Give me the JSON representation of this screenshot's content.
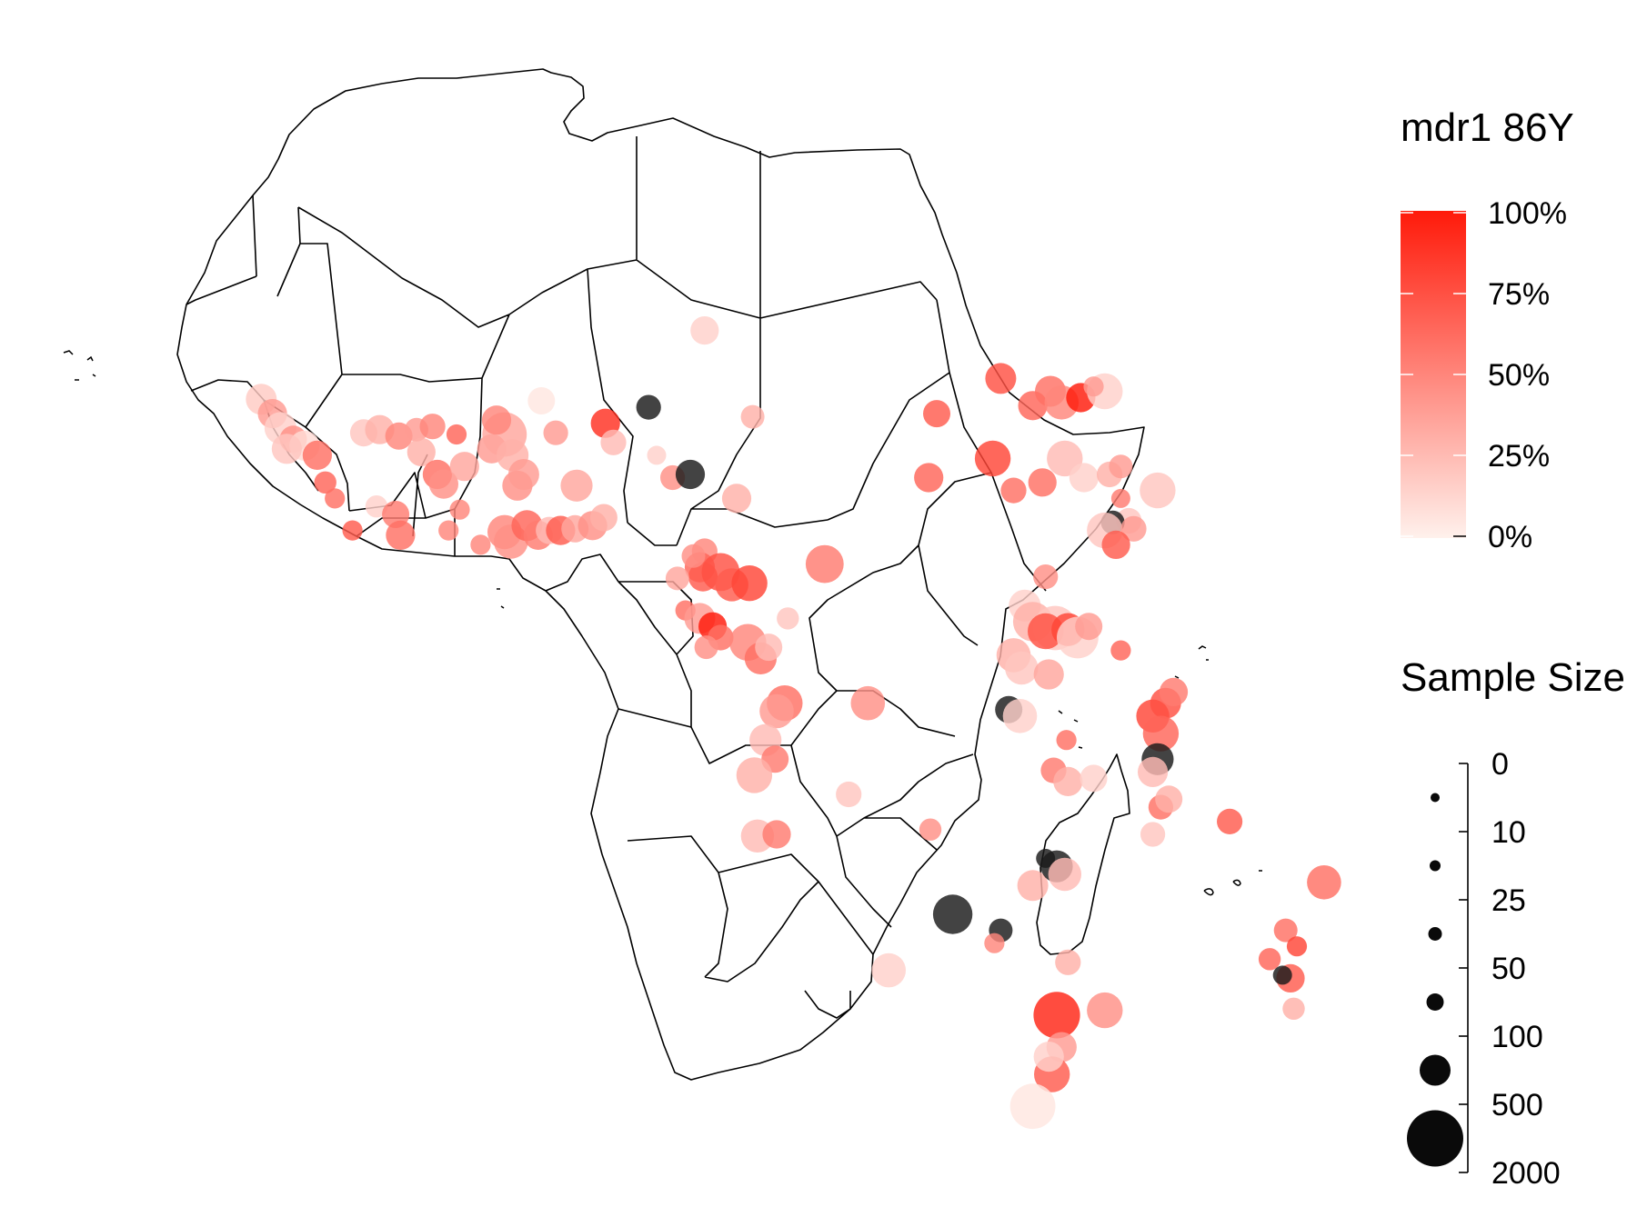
{
  "color_legend": {
    "title": "mdr1 86Y",
    "ticks": [
      "100%",
      "75%",
      "50%",
      "25%",
      "0%"
    ],
    "color_low": "#fff1ec",
    "color_high": "#ff1a0a"
  },
  "size_legend": {
    "title": "Sample Size",
    "ticks": [
      "0",
      "10",
      "25",
      "50",
      "100",
      "500",
      "2000"
    ]
  },
  "missing_value_color": "#1a1a1a",
  "points": [
    {
      "lon": -17.2,
      "lat": 14.7,
      "p": 0.18,
      "n": 80
    },
    {
      "lon": -16.5,
      "lat": 13.8,
      "p": 0.4,
      "n": 60
    },
    {
      "lon": -16.0,
      "lat": 12.9,
      "p": 0.15,
      "n": 100
    },
    {
      "lon": -15.2,
      "lat": 12.2,
      "p": 0.45,
      "n": 40
    },
    {
      "lon": -14.5,
      "lat": 11.8,
      "p": 0.1,
      "n": 70
    },
    {
      "lon": -13.7,
      "lat": 11.2,
      "p": 0.6,
      "n": 60
    },
    {
      "lon": -15.6,
      "lat": 11.6,
      "p": 0.2,
      "n": 70
    },
    {
      "lon": -13.2,
      "lat": 9.5,
      "p": 0.65,
      "n": 15
    },
    {
      "lon": -12.6,
      "lat": 8.5,
      "p": 0.6,
      "n": 10
    },
    {
      "lon": -11.5,
      "lat": 6.5,
      "p": 0.7,
      "n": 10
    },
    {
      "lon": -10.8,
      "lat": 12.6,
      "p": 0.2,
      "n": 40
    },
    {
      "lon": -9.8,
      "lat": 12.8,
      "p": 0.3,
      "n": 60
    },
    {
      "lon": -8.6,
      "lat": 12.4,
      "p": 0.5,
      "n": 40
    },
    {
      "lon": -7.5,
      "lat": 12.8,
      "p": 0.4,
      "n": 20
    },
    {
      "lon": -7.2,
      "lat": 11.4,
      "p": 0.3,
      "n": 50
    },
    {
      "lon": -6.5,
      "lat": 13.0,
      "p": 0.5,
      "n": 30
    },
    {
      "lon": -10.0,
      "lat": 8.0,
      "p": 0.15,
      "n": 15
    },
    {
      "lon": -8.8,
      "lat": 7.5,
      "p": 0.55,
      "n": 40
    },
    {
      "lon": -8.5,
      "lat": 6.2,
      "p": 0.6,
      "n": 60
    },
    {
      "lon": -6.2,
      "lat": 10.0,
      "p": 0.6,
      "n": 60
    },
    {
      "lon": -5.8,
      "lat": 9.4,
      "p": 0.45,
      "n": 60
    },
    {
      "lon": -4.5,
      "lat": 10.5,
      "p": 0.35,
      "n": 60
    },
    {
      "lon": -5.0,
      "lat": 12.5,
      "p": 0.65,
      "n": 10
    },
    {
      "lon": -4.8,
      "lat": 7.8,
      "p": 0.5,
      "n": 10
    },
    {
      "lon": -5.5,
      "lat": 6.5,
      "p": 0.5,
      "n": 10
    },
    {
      "lon": -3.5,
      "lat": 5.6,
      "p": 0.5,
      "n": 10
    },
    {
      "lon": -2.8,
      "lat": 11.6,
      "p": 0.4,
      "n": 60
    },
    {
      "lon": -2.0,
      "lat": 12.5,
      "p": 0.35,
      "n": 1000
    },
    {
      "lon": -1.5,
      "lat": 11.2,
      "p": 0.3,
      "n": 100
    },
    {
      "lon": -1.2,
      "lat": 9.3,
      "p": 0.45,
      "n": 70
    },
    {
      "lon": -0.8,
      "lat": 10.0,
      "p": 0.4,
      "n": 80
    },
    {
      "lon": -2.5,
      "lat": 13.4,
      "p": 0.5,
      "n": 60
    },
    {
      "lon": 1.2,
      "lat": 12.6,
      "p": 0.4,
      "n": 25
    },
    {
      "lon": 2.5,
      "lat": 9.3,
      "p": 0.35,
      "n": 100
    },
    {
      "lon": -2.0,
      "lat": 6.4,
      "p": 0.5,
      "n": 150
    },
    {
      "lon": -1.6,
      "lat": 5.8,
      "p": 0.45,
      "n": 150
    },
    {
      "lon": -0.6,
      "lat": 6.8,
      "p": 0.65,
      "n": 80
    },
    {
      "lon": 0.1,
      "lat": 6.2,
      "p": 0.55,
      "n": 60
    },
    {
      "lon": 0.8,
      "lat": 6.5,
      "p": 0.25,
      "n": 40
    },
    {
      "lon": 1.5,
      "lat": 6.5,
      "p": 0.7,
      "n": 60
    },
    {
      "lon": 2.4,
      "lat": 6.6,
      "p": 0.35,
      "n": 40
    },
    {
      "lon": 3.5,
      "lat": 6.8,
      "p": 0.45,
      "n": 60
    },
    {
      "lon": 4.2,
      "lat": 7.3,
      "p": 0.3,
      "n": 40
    },
    {
      "lon": 0.3,
      "lat": 14.6,
      "p": 0.05,
      "n": 40
    },
    {
      "lon": 4.3,
      "lat": 13.2,
      "p": 0.9,
      "n": 60
    },
    {
      "lon": 4.8,
      "lat": 12.0,
      "p": 0.25,
      "n": 30
    },
    {
      "lon": 7.5,
      "lat": 11.2,
      "p": 0.15,
      "n": 8
    },
    {
      "lon": 8.5,
      "lat": 9.8,
      "p": 0.45,
      "n": 25
    },
    {
      "lon": 9.6,
      "lat": 10.0,
      "p": null,
      "n": 60
    },
    {
      "lon": 7.0,
      "lat": 14.2,
      "p": null,
      "n": 25
    },
    {
      "lon": 10.5,
      "lat": 19.0,
      "p": 0.15,
      "n": 50
    },
    {
      "lon": 13.5,
      "lat": 13.6,
      "p": 0.3,
      "n": 20
    },
    {
      "lon": 12.5,
      "lat": 8.5,
      "p": 0.3,
      "n": 60
    },
    {
      "lon": 10.5,
      "lat": 5.2,
      "p": 0.5,
      "n": 30
    },
    {
      "lon": 10.2,
      "lat": 4.2,
      "p": 0.65,
      "n": 70
    },
    {
      "lon": 10.4,
      "lat": 3.6,
      "p": 0.7,
      "n": 60
    },
    {
      "lon": 11.5,
      "lat": 3.9,
      "p": 0.75,
      "n": 300
    },
    {
      "lon": 12.2,
      "lat": 3.1,
      "p": 0.7,
      "n": 120
    },
    {
      "lon": 13.3,
      "lat": 3.2,
      "p": 0.8,
      "n": 200
    },
    {
      "lon": 9.8,
      "lat": 4.9,
      "p": 0.45,
      "n": 20
    },
    {
      "lon": 8.8,
      "lat": 3.5,
      "p": 0.35,
      "n": 20
    },
    {
      "lon": 9.3,
      "lat": 1.5,
      "p": 0.6,
      "n": 10
    },
    {
      "lon": 10.2,
      "lat": 1.0,
      "p": 0.4,
      "n": 80
    },
    {
      "lon": 11.0,
      "lat": 0.5,
      "p": 1.0,
      "n": 50
    },
    {
      "lon": 11.5,
      "lat": -0.2,
      "p": 0.6,
      "n": 30
    },
    {
      "lon": 10.6,
      "lat": -0.8,
      "p": 0.45,
      "n": 20
    },
    {
      "lon": 13.2,
      "lat": -0.5,
      "p": 0.5,
      "n": 250
    },
    {
      "lon": 14.0,
      "lat": -1.5,
      "p": 0.6,
      "n": 100
    },
    {
      "lon": 14.5,
      "lat": -0.8,
      "p": 0.25,
      "n": 40
    },
    {
      "lon": 18.0,
      "lat": 4.4,
      "p": 0.55,
      "n": 300
    },
    {
      "lon": 15.7,
      "lat": 1.0,
      "p": 0.2,
      "n": 15
    },
    {
      "lon": 15.5,
      "lat": -4.3,
      "p": 0.6,
      "n": 200
    },
    {
      "lon": 15.0,
      "lat": -4.8,
      "p": 0.4,
      "n": 150
    },
    {
      "lon": 14.3,
      "lat": -6.6,
      "p": 0.25,
      "n": 100
    },
    {
      "lon": 14.9,
      "lat": -7.8,
      "p": 0.55,
      "n": 40
    },
    {
      "lon": 13.6,
      "lat": -8.8,
      "p": 0.3,
      "n": 200
    },
    {
      "lon": 20.7,
      "lat": -4.3,
      "p": 0.45,
      "n": 150
    },
    {
      "lon": 19.5,
      "lat": -10.0,
      "p": 0.2,
      "n": 30
    },
    {
      "lon": 13.8,
      "lat": -12.6,
      "p": 0.25,
      "n": 120
    },
    {
      "lon": 15.0,
      "lat": -12.5,
      "p": 0.55,
      "n": 50
    },
    {
      "lon": 24.6,
      "lat": -12.2,
      "p": 0.45,
      "n": 15
    },
    {
      "lon": 26.0,
      "lat": -17.5,
      "p": null,
      "n": 400
    },
    {
      "lon": 22.0,
      "lat": -21.0,
      "p": 0.15,
      "n": 150
    },
    {
      "lon": 29.0,
      "lat": -18.5,
      "p": null,
      "n": 20
    },
    {
      "lon": 31.0,
      "lat": -15.7,
      "p": 0.3,
      "n": 80
    },
    {
      "lon": 31.8,
      "lat": -14.0,
      "p": null,
      "n": 8
    },
    {
      "lon": 32.5,
      "lat": -14.5,
      "p": null,
      "n": 100
    },
    {
      "lon": 33.0,
      "lat": -15.0,
      "p": 0.25,
      "n": 120
    },
    {
      "lon": 33.2,
      "lat": -20.5,
      "p": 0.3,
      "n": 30
    },
    {
      "lon": 32.5,
      "lat": -23.8,
      "p": 0.95,
      "n": 1500
    },
    {
      "lon": 35.5,
      "lat": -23.5,
      "p": 0.45,
      "n": 200
    },
    {
      "lon": 32.8,
      "lat": -25.8,
      "p": 0.4,
      "n": 70
    },
    {
      "lon": 32.2,
      "lat": -27.5,
      "p": 0.7,
      "n": 200
    },
    {
      "lon": 32.0,
      "lat": -26.4,
      "p": 0.15,
      "n": 70
    },
    {
      "lon": 31.0,
      "lat": -29.5,
      "p": 0.05,
      "n": 1200
    },
    {
      "lon": 28.6,
      "lat": -19.3,
      "p": 0.5,
      "n": 10
    },
    {
      "lon": 29.0,
      "lat": 16.0,
      "p": 0.75,
      "n": 80
    },
    {
      "lon": 31.0,
      "lat": 14.3,
      "p": 0.65,
      "n": 60
    },
    {
      "lon": 32.1,
      "lat": 15.2,
      "p": 0.6,
      "n": 80
    },
    {
      "lon": 32.8,
      "lat": 14.5,
      "p": 0.5,
      "n": 150
    },
    {
      "lon": 34.0,
      "lat": 14.8,
      "p": 1.0,
      "n": 60
    },
    {
      "lon": 35.5,
      "lat": 15.2,
      "p": 0.15,
      "n": 200
    },
    {
      "lon": 34.8,
      "lat": 15.5,
      "p": 0.4,
      "n": 10
    },
    {
      "lon": 25.0,
      "lat": 13.8,
      "p": 0.7,
      "n": 40
    },
    {
      "lon": 28.5,
      "lat": 11.0,
      "p": 0.8,
      "n": 200
    },
    {
      "lon": 24.5,
      "lat": 9.8,
      "p": 0.65,
      "n": 60
    },
    {
      "lon": 29.8,
      "lat": 9.0,
      "p": 0.6,
      "n": 30
    },
    {
      "lon": 31.6,
      "lat": 9.5,
      "p": 0.6,
      "n": 50
    },
    {
      "lon": 33.0,
      "lat": 11.0,
      "p": 0.25,
      "n": 200
    },
    {
      "lon": 34.2,
      "lat": 9.8,
      "p": 0.15,
      "n": 60
    },
    {
      "lon": 35.8,
      "lat": 10.0,
      "p": 0.3,
      "n": 30
    },
    {
      "lon": 36.5,
      "lat": 10.5,
      "p": 0.4,
      "n": 20
    },
    {
      "lon": 38.8,
      "lat": 9.0,
      "p": 0.2,
      "n": 200
    },
    {
      "lon": 36.5,
      "lat": 8.5,
      "p": 0.55,
      "n": 8
    },
    {
      "lon": 37.0,
      "lat": 7.1,
      "p": 0.2,
      "n": 30
    },
    {
      "lon": 36.0,
      "lat": 7.0,
      "p": null,
      "n": 20
    },
    {
      "lon": 35.5,
      "lat": 6.5,
      "p": 0.2,
      "n": 200
    },
    {
      "lon": 37.3,
      "lat": 6.6,
      "p": 0.4,
      "n": 30
    },
    {
      "lon": 36.2,
      "lat": 5.6,
      "p": 0.7,
      "n": 50
    },
    {
      "lon": 31.8,
      "lat": 3.6,
      "p": 0.45,
      "n": 25
    },
    {
      "lon": 30.5,
      "lat": 1.8,
      "p": 0.15,
      "n": 100
    },
    {
      "lon": 31.0,
      "lat": 0.8,
      "p": 0.3,
      "n": 400
    },
    {
      "lon": 32.4,
      "lat": 0.4,
      "p": 0.2,
      "n": 1000
    },
    {
      "lon": 31.8,
      "lat": 0.2,
      "p": 0.75,
      "n": 200
    },
    {
      "lon": 33.2,
      "lat": 0.3,
      "p": 0.8,
      "n": 120
    },
    {
      "lon": 33.8,
      "lat": -0.2,
      "p": 0.15,
      "n": 600
    },
    {
      "lon": 34.5,
      "lat": 0.5,
      "p": 0.4,
      "n": 40
    },
    {
      "lon": 29.8,
      "lat": -1.3,
      "p": 0.3,
      "n": 150
    },
    {
      "lon": 30.3,
      "lat": -2.1,
      "p": 0.2,
      "n": 120
    },
    {
      "lon": 32.0,
      "lat": -2.5,
      "p": 0.35,
      "n": 70
    },
    {
      "lon": 36.5,
      "lat": -1.0,
      "p": 0.65,
      "n": 10
    },
    {
      "lon": 29.5,
      "lat": -4.7,
      "p": null,
      "n": 40
    },
    {
      "lon": 30.2,
      "lat": -5.1,
      "p": 0.15,
      "n": 150
    },
    {
      "lon": 33.1,
      "lat": -6.6,
      "p": 0.6,
      "n": 10
    },
    {
      "lon": 32.3,
      "lat": -8.5,
      "p": 0.55,
      "n": 30
    },
    {
      "lon": 33.2,
      "lat": -9.2,
      "p": 0.3,
      "n": 60
    },
    {
      "lon": 34.8,
      "lat": -9.0,
      "p": 0.15,
      "n": 40
    },
    {
      "lon": 38.5,
      "lat": -5.1,
      "p": 0.8,
      "n": 120
    },
    {
      "lon": 39.3,
      "lat": -4.3,
      "p": 0.75,
      "n": 80
    },
    {
      "lon": 39.8,
      "lat": -3.6,
      "p": 0.55,
      "n": 50
    },
    {
      "lon": 39.0,
      "lat": -6.2,
      "p": 0.65,
      "n": 200
    },
    {
      "lon": 38.8,
      "lat": -7.8,
      "p": null,
      "n": 100
    },
    {
      "lon": 38.5,
      "lat": -8.6,
      "p": 0.25,
      "n": 70
    },
    {
      "lon": 39.0,
      "lat": -10.8,
      "p": 0.6,
      "n": 25
    },
    {
      "lon": 38.5,
      "lat": -12.5,
      "p": 0.2,
      "n": 25
    },
    {
      "lon": 39.5,
      "lat": -10.3,
      "p": 0.3,
      "n": 40
    },
    {
      "lon": 43.3,
      "lat": -11.7,
      "p": 0.7,
      "n": 30
    },
    {
      "lon": 49.2,
      "lat": -15.5,
      "p": 0.6,
      "n": 150
    },
    {
      "lon": 46.8,
      "lat": -18.5,
      "p": 0.6,
      "n": 20
    },
    {
      "lon": 47.5,
      "lat": -19.5,
      "p": 0.8,
      "n": 10
    },
    {
      "lon": 45.8,
      "lat": -20.3,
      "p": 0.65,
      "n": 15
    },
    {
      "lon": 47.1,
      "lat": -21.5,
      "p": 0.7,
      "n": 50
    },
    {
      "lon": 46.6,
      "lat": -21.3,
      "p": null,
      "n": 8
    },
    {
      "lon": 47.3,
      "lat": -23.4,
      "p": 0.3,
      "n": 15
    }
  ]
}
